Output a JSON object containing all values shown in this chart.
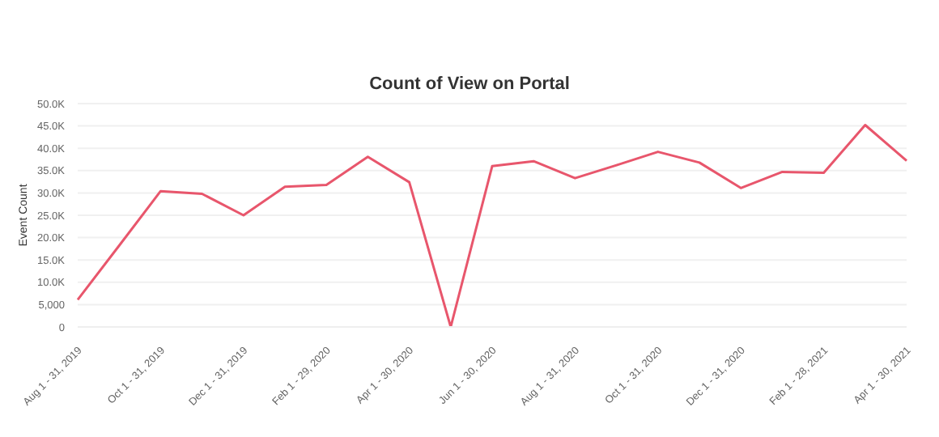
{
  "chart_data": {
    "type": "line",
    "title": "Count of View on Portal",
    "ylabel": "Event Count",
    "categories": [
      "Aug 1 - 31, 2019",
      null,
      "Oct 1 - 31, 2019",
      null,
      "Dec 1 - 31, 2019",
      null,
      "Feb 1 - 29, 2020",
      null,
      "Apr 1 - 30, 2020",
      null,
      "Jun 1 - 30, 2020",
      null,
      "Aug 1 - 31, 2020",
      null,
      "Oct 1 - 31, 2020",
      null,
      "Dec 1 - 31, 2020",
      null,
      "Feb 1 - 28, 2021",
      null,
      "Apr 1 - 30, 2021"
    ],
    "series": [
      {
        "color": "#e8566c",
        "values": [
          6100,
          18200,
          30400,
          29800,
          25000,
          31400,
          31800,
          38100,
          32400,
          0,
          36000,
          37100,
          33300,
          36200,
          39200,
          36800,
          31100,
          34700,
          34500,
          45200,
          37200
        ]
      }
    ],
    "ylim": [
      0,
      50000
    ],
    "yticks": [
      0,
      {
        "value": 5000,
        "label": "5,000"
      },
      {
        "value": 10000,
        "label": "10.0K"
      },
      {
        "value": 15000,
        "label": "15.0K"
      },
      {
        "value": 20000,
        "label": "20.0K"
      },
      {
        "value": 25000,
        "label": "25.0K"
      },
      {
        "value": 30000,
        "label": "30.0K"
      },
      {
        "value": 35000,
        "label": "35.0K"
      },
      {
        "value": 40000,
        "label": "40.0K"
      },
      {
        "value": 45000,
        "label": "45.0K"
      },
      {
        "value": 50000,
        "label": "50.0K"
      }
    ],
    "grid": "y",
    "marker": "none",
    "line_style": "solid",
    "legend": false
  }
}
